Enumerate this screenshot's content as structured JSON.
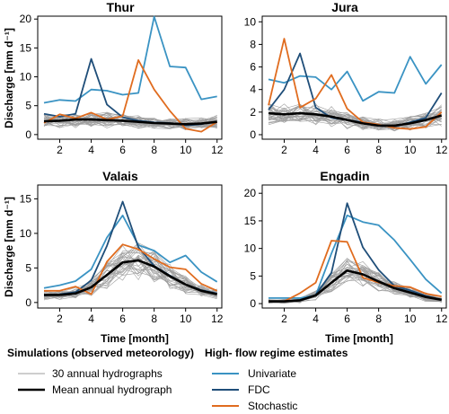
{
  "figure": {
    "legend": {
      "simulations": {
        "heading": "Simulations (observed meteorology)",
        "items": [
          {
            "label": "30 annual hydrographs",
            "color": "#9e9e9e"
          },
          {
            "label": "Mean annual hydrograph",
            "color": "#000000"
          }
        ]
      },
      "estimates": {
        "heading": "High- flow regime estimates",
        "items": [
          {
            "label": "Univariate",
            "color": "#3a93c3"
          },
          {
            "label": "FDC",
            "color": "#1f4e79"
          },
          {
            "label": "Stochastic",
            "color": "#e06c1f"
          }
        ]
      }
    }
  },
  "chart_data": [
    {
      "type": "line",
      "title": "Thur",
      "ylabel": "Discharge [mm d⁻¹]",
      "xlabel": "",
      "x": [
        1,
        2,
        3,
        4,
        5,
        6,
        7,
        8,
        9,
        10,
        11,
        12
      ],
      "xlim": [
        0.6,
        12.3
      ],
      "ylim": [
        -0.8,
        20.5
      ],
      "xticks": [
        2,
        4,
        6,
        8,
        10,
        12
      ],
      "yticks": [
        0,
        5,
        10,
        15,
        20
      ],
      "mean": [
        2.3,
        2.4,
        2.6,
        2.6,
        2.5,
        2.4,
        2.2,
        2.0,
        1.9,
        1.8,
        1.9,
        2.2
      ],
      "series": [
        {
          "name": "Univariate",
          "values": [
            5.5,
            6.0,
            5.8,
            7.8,
            7.6,
            6.9,
            7.2,
            20.4,
            11.8,
            11.6,
            6.1,
            6.6
          ]
        },
        {
          "name": "FDC",
          "values": [
            3.6,
            3.1,
            3.6,
            13.1,
            5.2,
            3.0,
            2.4,
            2.1,
            2.0,
            1.6,
            1.8,
            2.3
          ]
        },
        {
          "name": "Stochastic",
          "values": [
            2.0,
            3.5,
            2.8,
            3.8,
            2.6,
            3.2,
            12.9,
            7.8,
            4.1,
            1.0,
            0.5,
            2.2
          ]
        }
      ]
    },
    {
      "type": "line",
      "title": "Jura",
      "ylabel": "",
      "xlabel": "",
      "x": [
        1,
        2,
        3,
        4,
        5,
        6,
        7,
        8,
        9,
        10,
        11,
        12
      ],
      "xlim": [
        0.6,
        12.3
      ],
      "ylim": [
        -0.4,
        10.5
      ],
      "xticks": [
        2,
        4,
        6,
        8,
        10,
        12
      ],
      "yticks": [
        0,
        2,
        4,
        6,
        8,
        10
      ],
      "mean": [
        1.9,
        1.8,
        1.9,
        1.8,
        1.6,
        1.3,
        1.0,
        0.8,
        0.8,
        1.0,
        1.3,
        1.7
      ],
      "series": [
        {
          "name": "Univariate",
          "values": [
            4.9,
            4.6,
            5.2,
            5.1,
            4.0,
            5.6,
            3.0,
            3.8,
            3.7,
            6.9,
            4.5,
            6.2
          ]
        },
        {
          "name": "FDC",
          "values": [
            2.2,
            4.0,
            7.2,
            2.4,
            1.5,
            1.3,
            1.1,
            0.8,
            0.7,
            1.1,
            1.5,
            3.7
          ]
        },
        {
          "name": "Stochastic",
          "values": [
            2.6,
            8.5,
            2.4,
            3.2,
            5.3,
            2.3,
            1.1,
            0.9,
            0.6,
            0.5,
            0.7,
            2.0
          ]
        }
      ]
    },
    {
      "type": "line",
      "title": "Valais",
      "ylabel": "Discharge [mm d⁻¹]",
      "xlabel": "Time [month]",
      "x": [
        1,
        2,
        3,
        4,
        5,
        6,
        7,
        8,
        9,
        10,
        11,
        12
      ],
      "xlim": [
        0.6,
        12.3
      ],
      "ylim": [
        -0.8,
        17.0
      ],
      "xticks": [
        2,
        4,
        6,
        8,
        10,
        12
      ],
      "yticks": [
        0,
        5,
        10,
        15
      ],
      "mean": [
        1.1,
        1.1,
        1.3,
        2.2,
        4.0,
        5.8,
        6.1,
        5.2,
        3.8,
        2.6,
        1.7,
        1.2
      ],
      "series": [
        {
          "name": "Univariate",
          "values": [
            2.1,
            2.5,
            3.1,
            4.8,
            9.4,
            12.6,
            8.3,
            7.5,
            5.8,
            6.8,
            4.4,
            3.0
          ]
        },
        {
          "name": "FDC",
          "values": [
            1.0,
            1.2,
            1.5,
            3.2,
            8.2,
            14.6,
            8.0,
            5.3,
            3.9,
            2.6,
            1.8,
            1.3
          ]
        },
        {
          "name": "Stochastic",
          "values": [
            1.7,
            1.7,
            2.3,
            1.2,
            5.9,
            8.4,
            7.7,
            6.3,
            5.1,
            4.8,
            2.7,
            1.7
          ]
        }
      ]
    },
    {
      "type": "line",
      "title": "Engadin",
      "ylabel": "",
      "xlabel": "Time [month]",
      "x": [
        1,
        2,
        3,
        4,
        5,
        6,
        7,
        8,
        9,
        10,
        11,
        12
      ],
      "xlim": [
        0.6,
        12.3
      ],
      "ylim": [
        -0.8,
        21.5
      ],
      "xticks": [
        2,
        4,
        6,
        8,
        10,
        12
      ],
      "yticks": [
        0,
        5,
        10,
        15,
        20
      ],
      "mean": [
        0.4,
        0.4,
        0.6,
        1.5,
        3.8,
        6.0,
        5.3,
        4.0,
        2.8,
        2.0,
        1.2,
        0.7
      ],
      "series": [
        {
          "name": "Univariate",
          "values": [
            1.0,
            1.0,
            1.0,
            1.5,
            9.1,
            16.0,
            14.8,
            14.2,
            11.5,
            8.0,
            4.4,
            1.9
          ]
        },
        {
          "name": "FDC",
          "values": [
            0.4,
            0.4,
            0.6,
            1.6,
            5.6,
            18.2,
            10.2,
            6.1,
            3.2,
            2.4,
            1.4,
            0.7
          ]
        },
        {
          "name": "Stochastic",
          "values": [
            0.4,
            0.4,
            1.9,
            3.8,
            11.4,
            11.2,
            4.7,
            3.8,
            3.2,
            3.0,
            1.8,
            1.3
          ]
        }
      ]
    }
  ]
}
